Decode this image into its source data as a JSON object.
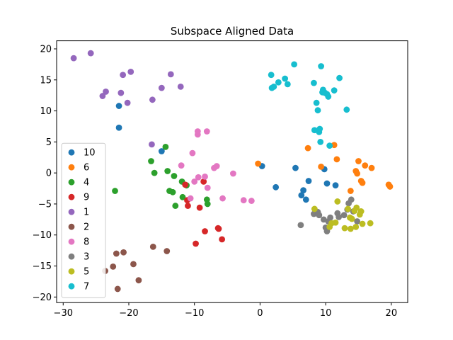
{
  "chart_data": {
    "type": "scatter",
    "title": "Subspace Aligned Data",
    "xlabel": "",
    "ylabel": "",
    "xlim": [
      -31,
      22.5
    ],
    "ylim": [
      -20.9,
      21.3
    ],
    "xticks": [
      -30,
      -20,
      -10,
      0,
      10,
      20
    ],
    "yticks": [
      -20,
      -15,
      -10,
      -5,
      0,
      5,
      10,
      15,
      20
    ],
    "xtick_labels": [
      "−30",
      "−20",
      "−10",
      "0",
      "10",
      "20"
    ],
    "ytick_labels": [
      "−20",
      "−15",
      "−10",
      "−5",
      "0",
      "5",
      "10",
      "15",
      "20"
    ],
    "grid": false,
    "legend_position": "lower-left",
    "series": [
      {
        "name": "10",
        "color": "#1f77b4",
        "points": [
          [
            -21.5,
            10.8
          ],
          [
            -21.5,
            7.3
          ],
          [
            -15.0,
            3.5
          ],
          [
            0.3,
            1.1
          ],
          [
            2.4,
            -2.3
          ],
          [
            5.4,
            0.8
          ],
          [
            6.6,
            -2.8
          ],
          [
            6.3,
            -3.6
          ],
          [
            7.0,
            -4.3
          ],
          [
            7.4,
            -1.3
          ],
          [
            9.8,
            0.6
          ],
          [
            10.2,
            -1.7
          ],
          [
            11.5,
            -2.0
          ]
        ]
      },
      {
        "name": "6",
        "color": "#ff7f0e",
        "points": [
          [
            -0.3,
            1.5
          ],
          [
            7.3,
            4.0
          ],
          [
            9.3,
            1.0
          ],
          [
            11.3,
            4.5
          ],
          [
            11.7,
            2.2
          ],
          [
            13.8,
            -2.9
          ],
          [
            14.6,
            0.3
          ],
          [
            14.8,
            -0.1
          ],
          [
            15.0,
            1.9
          ],
          [
            15.4,
            -1.3
          ],
          [
            15.6,
            -1.6
          ],
          [
            16.0,
            1.2
          ],
          [
            17.0,
            0.8
          ],
          [
            19.6,
            -1.9
          ],
          [
            19.8,
            -2.2
          ]
        ]
      },
      {
        "name": "4",
        "color": "#2ca02c",
        "points": [
          [
            -22.1,
            -2.9
          ],
          [
            -16.6,
            1.9
          ],
          [
            -16.1,
            0.0
          ],
          [
            -14.4,
            4.2
          ],
          [
            -14.1,
            0.3
          ],
          [
            -13.8,
            -2.9
          ],
          [
            -13.3,
            -3.1
          ],
          [
            -13.1,
            -0.5
          ],
          [
            -12.9,
            -5.3
          ],
          [
            -11.9,
            -1.4
          ],
          [
            -11.8,
            -3.9
          ],
          [
            -11.2,
            -2.0
          ],
          [
            -8.1,
            -4.3
          ],
          [
            -8.0,
            -5.0
          ]
        ]
      },
      {
        "name": "9",
        "color": "#d62728",
        "points": [
          [
            -11.4,
            -1.9
          ],
          [
            -11.1,
            -4.4
          ],
          [
            -11.0,
            -5.3
          ],
          [
            -9.8,
            -11.4
          ],
          [
            -9.2,
            -5.6
          ],
          [
            -8.6,
            -1.4
          ],
          [
            -8.4,
            -9.4
          ],
          [
            -6.4,
            -8.9
          ],
          [
            -6.3,
            -9.0
          ],
          [
            -5.8,
            -10.7
          ]
        ]
      },
      {
        "name": "1",
        "color": "#9467bd",
        "points": [
          [
            -28.4,
            18.5
          ],
          [
            -25.8,
            19.3
          ],
          [
            -24.0,
            12.4
          ],
          [
            -23.5,
            13.1
          ],
          [
            -21.2,
            12.9
          ],
          [
            -20.9,
            15.8
          ],
          [
            -20.2,
            11.3
          ],
          [
            -19.7,
            16.3
          ],
          [
            -16.5,
            4.6
          ],
          [
            -16.4,
            11.8
          ],
          [
            -15.0,
            13.7
          ],
          [
            -13.6,
            15.9
          ],
          [
            -12.1,
            13.9
          ]
        ]
      },
      {
        "name": "2",
        "color": "#8c564b",
        "points": [
          [
            -23.6,
            -15.8
          ],
          [
            -22.4,
            -15.1
          ],
          [
            -21.9,
            -13.0
          ],
          [
            -21.7,
            -18.7
          ],
          [
            -20.8,
            -12.8
          ],
          [
            -19.3,
            -14.7
          ],
          [
            -18.5,
            -17.3
          ],
          [
            -16.3,
            -11.9
          ],
          [
            -14.2,
            -12.6
          ]
        ]
      },
      {
        "name": "8",
        "color": "#e377c2",
        "points": [
          [
            -12.0,
            1.2
          ],
          [
            -10.6,
            -4.1
          ],
          [
            -10.3,
            3.2
          ],
          [
            -10.0,
            -1.4
          ],
          [
            -9.5,
            6.2
          ],
          [
            -9.5,
            6.7
          ],
          [
            -9.4,
            -0.7
          ],
          [
            -8.4,
            -0.6
          ],
          [
            -8.1,
            6.7
          ],
          [
            -8.0,
            -2.4
          ],
          [
            -7.0,
            0.8
          ],
          [
            -6.6,
            1.1
          ],
          [
            -5.7,
            -4.1
          ],
          [
            -4.1,
            -0.1
          ],
          [
            -2.5,
            -4.4
          ],
          [
            -1.3,
            -4.5
          ]
        ]
      },
      {
        "name": "3",
        "color": "#7f7f7f",
        "points": [
          [
            6.2,
            -8.4
          ],
          [
            8.2,
            -6.6
          ],
          [
            8.8,
            -6.3
          ],
          [
            9.0,
            -6.8
          ],
          [
            9.7,
            -7.5
          ],
          [
            10.0,
            -8.8
          ],
          [
            10.2,
            -9.4
          ],
          [
            10.4,
            -7.8
          ],
          [
            10.7,
            -7.2
          ],
          [
            11.8,
            -6.5
          ],
          [
            12.0,
            -7.1
          ],
          [
            12.8,
            -6.8
          ],
          [
            13.3,
            -5.9
          ],
          [
            13.5,
            -4.9
          ],
          [
            13.9,
            -4.3
          ],
          [
            14.2,
            -6.2
          ],
          [
            14.8,
            -7.8
          ]
        ]
      },
      {
        "name": "5",
        "color": "#bcbd22",
        "points": [
          [
            8.3,
            -5.8
          ],
          [
            10.6,
            -8.7
          ],
          [
            10.9,
            -8.1
          ],
          [
            11.5,
            -8.0
          ],
          [
            11.8,
            -4.6
          ],
          [
            12.9,
            -8.9
          ],
          [
            13.4,
            -5.8
          ],
          [
            13.7,
            -7.2
          ],
          [
            13.8,
            -9.0
          ],
          [
            14.0,
            -7.4
          ],
          [
            14.4,
            -6.1
          ],
          [
            14.6,
            -8.7
          ],
          [
            14.7,
            -5.6
          ],
          [
            15.2,
            -6.7
          ],
          [
            15.4,
            -6.2
          ],
          [
            15.6,
            -8.2
          ],
          [
            16.8,
            -8.1
          ]
        ]
      },
      {
        "name": "7",
        "color": "#17becf",
        "points": [
          [
            1.7,
            15.8
          ],
          [
            1.8,
            13.7
          ],
          [
            2.1,
            13.9
          ],
          [
            2.8,
            14.6
          ],
          [
            3.8,
            15.2
          ],
          [
            4.2,
            14.3
          ],
          [
            5.2,
            17.5
          ],
          [
            8.2,
            14.5
          ],
          [
            8.3,
            6.9
          ],
          [
            8.6,
            11.3
          ],
          [
            8.8,
            10.1
          ],
          [
            9.0,
            6.6
          ],
          [
            9.1,
            7.1
          ],
          [
            9.2,
            5.0
          ],
          [
            9.3,
            17.2
          ],
          [
            9.5,
            13.0
          ],
          [
            9.6,
            13.4
          ],
          [
            9.9,
            12.9
          ],
          [
            10.2,
            12.7
          ],
          [
            10.4,
            12.3
          ],
          [
            10.6,
            4.4
          ],
          [
            11.3,
            13.3
          ],
          [
            12.1,
            15.3
          ],
          [
            13.2,
            10.2
          ]
        ]
      }
    ]
  }
}
